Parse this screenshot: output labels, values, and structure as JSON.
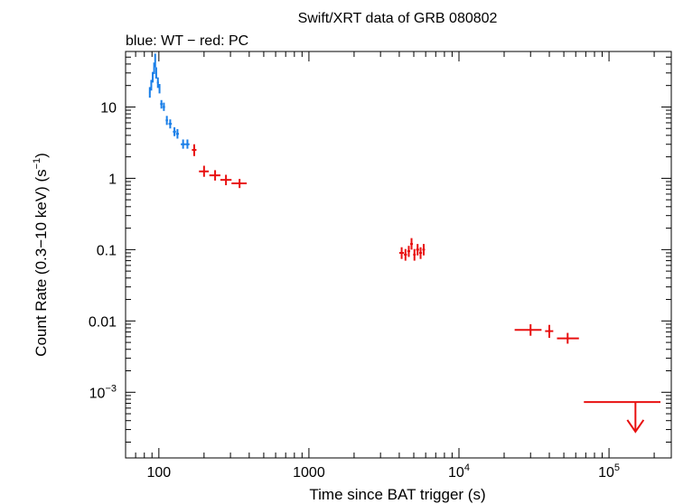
{
  "chart_data": {
    "type": "scatter",
    "title": "Swift/XRT data of GRB 080802",
    "subtitle": "blue: WT − red: PC",
    "xlabel": "Time since BAT trigger (s)",
    "ylabel_main": "Count Rate (0.3−10 keV) (s",
    "ylabel_sup": "−1",
    "ylabel_end": ")",
    "xscale": "log",
    "yscale": "log",
    "xlim": [
      60,
      260000
    ],
    "ylim": [
      0.00012,
      60
    ],
    "x_ticks": [
      {
        "value": 100,
        "base": "100",
        "sup": ""
      },
      {
        "value": 1000,
        "base": "1000",
        "sup": ""
      },
      {
        "value": 10000,
        "base": "10",
        "sup": "4"
      },
      {
        "value": 100000,
        "base": "10",
        "sup": "5"
      }
    ],
    "y_ticks": [
      {
        "value": 10,
        "base": "10",
        "sup": ""
      },
      {
        "value": 1,
        "base": "1",
        "sup": ""
      },
      {
        "value": 0.1,
        "base": "0.1",
        "sup": ""
      },
      {
        "value": 0.01,
        "base": "0.01",
        "sup": ""
      },
      {
        "value": 0.001,
        "base": "10",
        "sup": "−3"
      }
    ],
    "colors": {
      "wt": "#1a7fe8",
      "pc": "#e81010",
      "axis": "#000000"
    },
    "series": [
      {
        "key": "wt",
        "points": [
          {
            "x": 87,
            "xlo": 86,
            "xhi": 88,
            "y": 16,
            "ylo": 13.5,
            "yhi": 19
          },
          {
            "x": 89,
            "xlo": 88,
            "xhi": 90,
            "y": 20,
            "ylo": 17,
            "yhi": 24
          },
          {
            "x": 91,
            "xlo": 90,
            "xhi": 92,
            "y": 26,
            "ylo": 22,
            "yhi": 31
          },
          {
            "x": 93,
            "xlo": 92,
            "xhi": 94,
            "y": 35,
            "ylo": 29,
            "yhi": 42
          },
          {
            "x": 94.5,
            "xlo": 94,
            "xhi": 95,
            "y": 45,
            "ylo": 36,
            "yhi": 56
          },
          {
            "x": 96,
            "xlo": 95,
            "xhi": 97,
            "y": 30,
            "ylo": 25,
            "yhi": 36
          },
          {
            "x": 98.5,
            "xlo": 97,
            "xhi": 100,
            "y": 22,
            "ylo": 18.5,
            "yhi": 26
          },
          {
            "x": 101,
            "xlo": 100,
            "xhi": 102,
            "y": 18,
            "ylo": 15.5,
            "yhi": 21
          },
          {
            "x": 104,
            "xlo": 102,
            "xhi": 106,
            "y": 11,
            "ylo": 9.5,
            "yhi": 12.5
          },
          {
            "x": 108,
            "xlo": 106,
            "xhi": 110,
            "y": 10,
            "ylo": 8.8,
            "yhi": 11.5
          },
          {
            "x": 113,
            "xlo": 111,
            "xhi": 115,
            "y": 6.5,
            "ylo": 5.6,
            "yhi": 7.5
          },
          {
            "x": 119,
            "xlo": 116,
            "xhi": 122,
            "y": 5.8,
            "ylo": 5.0,
            "yhi": 6.7
          },
          {
            "x": 127,
            "xlo": 124,
            "xhi": 130,
            "y": 4.5,
            "ylo": 3.9,
            "yhi": 5.2
          },
          {
            "x": 133,
            "xlo": 130,
            "xhi": 136,
            "y": 4.2,
            "ylo": 3.6,
            "yhi": 4.9
          },
          {
            "x": 145,
            "xlo": 140,
            "xhi": 150,
            "y": 3.0,
            "ylo": 2.6,
            "yhi": 3.5
          },
          {
            "x": 155,
            "xlo": 150,
            "xhi": 160,
            "y": 3.0,
            "ylo": 2.6,
            "yhi": 3.5
          }
        ]
      },
      {
        "key": "pc",
        "points": [
          {
            "x": 172,
            "xlo": 166,
            "xhi": 178,
            "y": 2.5,
            "ylo": 2.05,
            "yhi": 3.0
          },
          {
            "x": 200,
            "xlo": 185,
            "xhi": 215,
            "y": 1.25,
            "ylo": 1.05,
            "yhi": 1.5
          },
          {
            "x": 237,
            "xlo": 217,
            "xhi": 257,
            "y": 1.1,
            "ylo": 0.93,
            "yhi": 1.3
          },
          {
            "x": 280,
            "xlo": 257,
            "xhi": 305,
            "y": 0.95,
            "ylo": 0.8,
            "yhi": 1.12
          },
          {
            "x": 345,
            "xlo": 305,
            "xhi": 385,
            "y": 0.85,
            "ylo": 0.73,
            "yhi": 0.98
          },
          {
            "x": 4150,
            "xlo": 4000,
            "xhi": 4300,
            "y": 0.09,
            "ylo": 0.074,
            "yhi": 0.108
          },
          {
            "x": 4400,
            "xlo": 4300,
            "xhi": 4500,
            "y": 0.085,
            "ylo": 0.07,
            "yhi": 0.102
          },
          {
            "x": 4630,
            "xlo": 4530,
            "xhi": 4730,
            "y": 0.095,
            "ylo": 0.079,
            "yhi": 0.113
          },
          {
            "x": 4830,
            "xlo": 4730,
            "xhi": 4930,
            "y": 0.12,
            "ylo": 0.1,
            "yhi": 0.145
          },
          {
            "x": 5050,
            "xlo": 4950,
            "xhi": 5150,
            "y": 0.085,
            "ylo": 0.07,
            "yhi": 0.102
          },
          {
            "x": 5300,
            "xlo": 5180,
            "xhi": 5420,
            "y": 0.1,
            "ylo": 0.083,
            "yhi": 0.12
          },
          {
            "x": 5550,
            "xlo": 5430,
            "xhi": 5670,
            "y": 0.09,
            "ylo": 0.074,
            "yhi": 0.108
          },
          {
            "x": 5820,
            "xlo": 5700,
            "xhi": 5940,
            "y": 0.1,
            "ylo": 0.083,
            "yhi": 0.12
          },
          {
            "x": 30000,
            "xlo": 23500,
            "xhi": 35500,
            "y": 0.0075,
            "ylo": 0.0062,
            "yhi": 0.009
          },
          {
            "x": 40000,
            "xlo": 37500,
            "xhi": 42500,
            "y": 0.0072,
            "ylo": 0.0058,
            "yhi": 0.0088
          },
          {
            "x": 53000,
            "xlo": 45000,
            "xhi": 63000,
            "y": 0.0057,
            "ylo": 0.0048,
            "yhi": 0.0068
          }
        ]
      }
    ],
    "upper_limits": [
      {
        "key": "pc",
        "x": 150000,
        "xlo": 68000,
        "xhi": 240000,
        "y": 0.00073,
        "y_arrow_end": 0.00028
      }
    ]
  }
}
